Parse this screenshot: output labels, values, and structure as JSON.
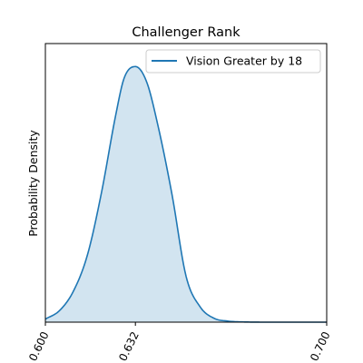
{
  "chart_data": {
    "type": "area",
    "title": "Challenger Rank",
    "xlabel": "",
    "ylabel": "Probability Density",
    "xlim": [
      0.6,
      0.7
    ],
    "ylim": [
      0,
      1.09
    ],
    "x_ticks": [
      0.6,
      0.632,
      0.7
    ],
    "x_tick_labels": [
      "0.600",
      "0.632",
      "0.700"
    ],
    "y_ticks_shown": false,
    "grid": false,
    "legend_position": "upper right",
    "series": [
      {
        "name": "Vision Greater by 18",
        "color": "#1f77b4",
        "fill_color": "#1f77b4",
        "fill_opacity": 0.2,
        "x": [
          0.6,
          0.605,
          0.61,
          0.615,
          0.62,
          0.625,
          0.628,
          0.632,
          0.636,
          0.64,
          0.645,
          0.65,
          0.655,
          0.66,
          0.665,
          0.67,
          0.68,
          0.7
        ],
        "y": [
          0.012,
          0.045,
          0.122,
          0.265,
          0.51,
          0.81,
          0.955,
          1.0,
          0.94,
          0.77,
          0.5,
          0.18,
          0.06,
          0.015,
          0.004,
          0.001,
          0.0,
          0.0
        ]
      }
    ]
  }
}
